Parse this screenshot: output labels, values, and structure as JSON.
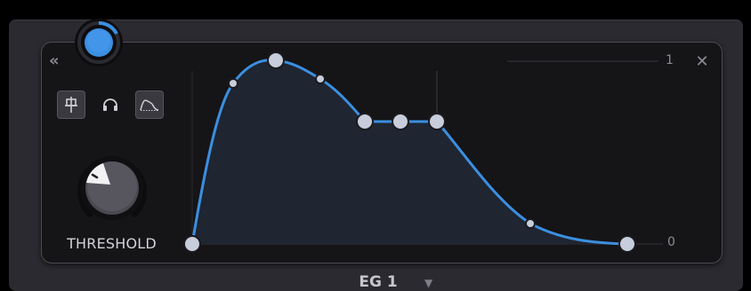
{
  "panel": {
    "scale_max": "1",
    "scale_min": "0"
  },
  "controls": {
    "threshold_label": "THRESHOLD"
  },
  "footer": {
    "title": "EG 1"
  },
  "colors": {
    "accent": "#3b8fe0",
    "panel_bg": "#151417",
    "frame_bg": "#2b2a30"
  },
  "icons": {
    "collapse": "double-chevron-left",
    "close": "close-x",
    "mode_1": "pin-icon",
    "mode_2": "headphones-icon",
    "mode_3": "envelope-shape-icon",
    "dropdown": "caret-down"
  }
}
